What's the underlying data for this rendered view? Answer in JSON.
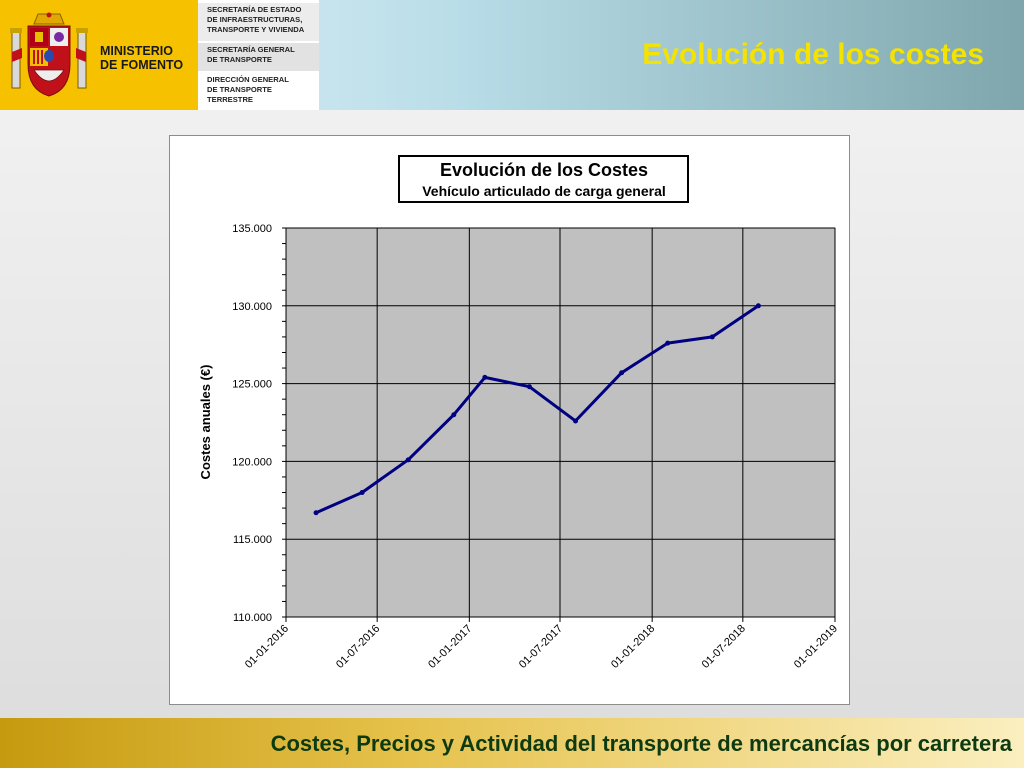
{
  "header": {
    "ministry_lines": [
      "MINISTERIO",
      "DE FOMENTO"
    ],
    "sub1_lines": [
      "SECRETARÍA DE ESTADO",
      "DE INFRAESTRUCTURAS,",
      "TRANSPORTE Y VIVIENDA"
    ],
    "sub2_lines": [
      "SECRETARÍA GENERAL",
      "DE TRANSPORTE"
    ],
    "sub3_lines": [
      "DIRECCIÓN GENERAL",
      "DE TRANSPORTE",
      "TERRESTRE"
    ],
    "page_title": "Evolución de los costes",
    "logo_color": "#f6c200"
  },
  "footer": {
    "text": "Costes, Precios y Actividad del transporte de mercancías por carretera"
  },
  "chart_data": {
    "type": "line",
    "title": "Evolución de los Costes",
    "subtitle": "Vehículo articulado de carga general",
    "xlabel": "",
    "ylabel": "Costes anuales (€)",
    "x_ticks": [
      "01-01-2016",
      "01-07-2016",
      "01-01-2017",
      "01-07-2017",
      "01-01-2018",
      "01-07-2018",
      "01-01-2019"
    ],
    "y_ticks": [
      "110.000",
      "115.000",
      "120.000",
      "125.000",
      "130.000",
      "135.000"
    ],
    "ylim": [
      110000,
      135000
    ],
    "xlim": [
      "2016-01-01",
      "2019-01-01"
    ],
    "grid": true,
    "plot_background": "#c0c0c0",
    "line_color": "#000080",
    "series": [
      {
        "x": [
          "2016-03-01",
          "2016-06-01",
          "2016-09-01",
          "2016-12-01",
          "2017-02-01",
          "2017-05-01",
          "2017-08-01",
          "2017-11-01",
          "2018-02-01",
          "2018-05-01",
          "2018-08-01"
        ],
        "values": [
          116700,
          118000,
          120100,
          123000,
          125400,
          124800,
          122600,
          125700,
          127600,
          128000,
          130000
        ]
      }
    ]
  }
}
